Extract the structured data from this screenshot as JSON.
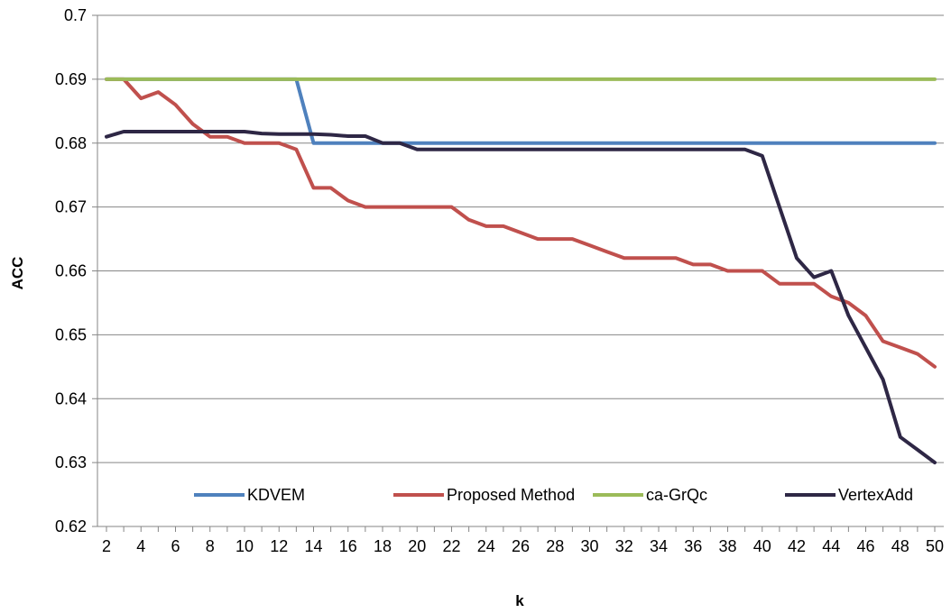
{
  "chart_data": {
    "type": "line",
    "title": "",
    "xlabel": "k",
    "ylabel": "ACC",
    "ylim": [
      0.62,
      0.7
    ],
    "y_ticks": [
      "0.62",
      "0.63",
      "0.64",
      "0.65",
      "0.66",
      "0.67",
      "0.68",
      "0.69",
      "0.7"
    ],
    "x": [
      2,
      3,
      4,
      5,
      6,
      7,
      8,
      9,
      10,
      11,
      12,
      13,
      14,
      15,
      16,
      17,
      18,
      19,
      20,
      21,
      22,
      23,
      24,
      25,
      26,
      27,
      28,
      29,
      30,
      31,
      32,
      33,
      34,
      35,
      36,
      37,
      38,
      39,
      40,
      41,
      42,
      43,
      44,
      45,
      46,
      47,
      48,
      49,
      50
    ],
    "x_tick_labels": [
      "2",
      "4",
      "6",
      "8",
      "10",
      "12",
      "14",
      "16",
      "18",
      "20",
      "22",
      "24",
      "26",
      "28",
      "30",
      "32",
      "34",
      "36",
      "38",
      "40",
      "42",
      "44",
      "46",
      "48",
      "50"
    ],
    "grid": "horizontal",
    "legend_position": "bottom-inside",
    "series": [
      {
        "name": "KDVEM",
        "color": "#4F81BD",
        "values": [
          0.69,
          0.69,
          0.69,
          0.69,
          0.69,
          0.69,
          0.69,
          0.69,
          0.69,
          0.69,
          0.69,
          0.69,
          0.68,
          0.68,
          0.68,
          0.68,
          0.68,
          0.68,
          0.68,
          0.68,
          0.68,
          0.68,
          0.68,
          0.68,
          0.68,
          0.68,
          0.68,
          0.68,
          0.68,
          0.68,
          0.68,
          0.68,
          0.68,
          0.68,
          0.68,
          0.68,
          0.68,
          0.68,
          0.68,
          0.68,
          0.68,
          0.68,
          0.68,
          0.68,
          0.68,
          0.68,
          0.68,
          0.68,
          0.68
        ]
      },
      {
        "name": "Proposed Method",
        "color": "#C0504D",
        "values": [
          0.69,
          0.69,
          0.687,
          0.688,
          0.686,
          0.683,
          0.681,
          0.681,
          0.68,
          0.68,
          0.68,
          0.679,
          0.673,
          0.673,
          0.671,
          0.67,
          0.67,
          0.67,
          0.67,
          0.67,
          0.67,
          0.668,
          0.667,
          0.667,
          0.666,
          0.665,
          0.665,
          0.665,
          0.664,
          0.663,
          0.662,
          0.662,
          0.662,
          0.662,
          0.661,
          0.661,
          0.66,
          0.66,
          0.66,
          0.658,
          0.658,
          0.658,
          0.656,
          0.655,
          0.653,
          0.649,
          0.648,
          0.647,
          0.645
        ]
      },
      {
        "name": "ca-GrQc",
        "color": "#9BBB59",
        "values": [
          0.69,
          0.69,
          0.69,
          0.69,
          0.69,
          0.69,
          0.69,
          0.69,
          0.69,
          0.69,
          0.69,
          0.69,
          0.69,
          0.69,
          0.69,
          0.69,
          0.69,
          0.69,
          0.69,
          0.69,
          0.69,
          0.69,
          0.69,
          0.69,
          0.69,
          0.69,
          0.69,
          0.69,
          0.69,
          0.69,
          0.69,
          0.69,
          0.69,
          0.69,
          0.69,
          0.69,
          0.69,
          0.69,
          0.69,
          0.69,
          0.69,
          0.69,
          0.69,
          0.69,
          0.69,
          0.69,
          0.69,
          0.69,
          0.69
        ]
      },
      {
        "name": "VertexAdd",
        "color": "#2E2745",
        "values": [
          0.681,
          0.6818,
          0.6818,
          0.6818,
          0.6818,
          0.6818,
          0.6818,
          0.6818,
          0.6818,
          0.6815,
          0.6814,
          0.6814,
          0.6814,
          0.6813,
          0.6811,
          0.6811,
          0.68,
          0.68,
          0.679,
          0.679,
          0.679,
          0.679,
          0.679,
          0.679,
          0.679,
          0.679,
          0.679,
          0.679,
          0.679,
          0.679,
          0.679,
          0.679,
          0.679,
          0.679,
          0.679,
          0.679,
          0.679,
          0.679,
          0.678,
          0.67,
          0.662,
          0.659,
          0.66,
          0.653,
          0.648,
          0.643,
          0.634,
          0.632,
          0.63
        ]
      }
    ]
  }
}
